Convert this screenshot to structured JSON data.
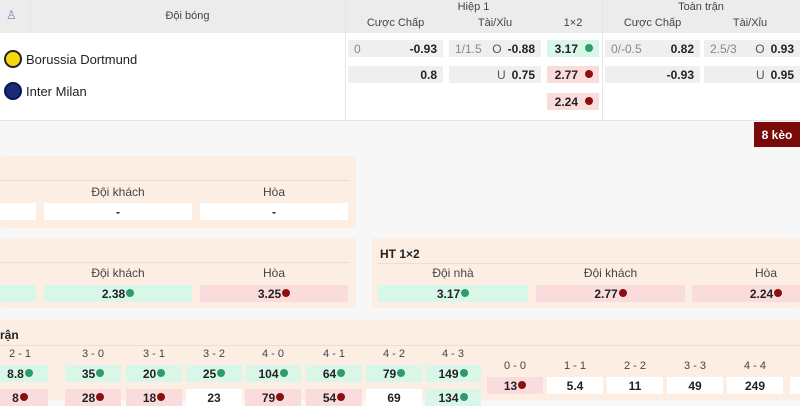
{
  "header": {
    "team_col": "Đội bóng",
    "half1": "Hiệp 1",
    "full": "Toàn trận",
    "handicap": "Cược Chấp",
    "ou": "Tài/Xỉu",
    "x12": "1×2"
  },
  "teams": [
    {
      "name": "Borussia Dortmund",
      "logo": "bvb-logo"
    },
    {
      "name": "Inter Milan",
      "logo": "inter-logo"
    }
  ],
  "odds": {
    "h1_hdp": [
      {
        "line": "0",
        "odds": "-0.93"
      },
      {
        "line": "",
        "odds": "0.8"
      }
    ],
    "h1_ou": [
      {
        "line": "1/1.5",
        "side": "O",
        "odds": "-0.88"
      },
      {
        "line": "",
        "side": "U",
        "odds": "0.75"
      }
    ],
    "h1_1x2": [
      {
        "odds": "3.17",
        "trend": "up"
      },
      {
        "odds": "2.77",
        "trend": "down"
      },
      {
        "odds": "2.24",
        "trend": "down"
      }
    ],
    "ft_hdp": [
      {
        "line": "0/-0.5",
        "odds": "0.82"
      },
      {
        "line": "",
        "odds": "-0.93"
      }
    ],
    "ft_ou": [
      {
        "line": "2.5/3",
        "side": "O",
        "odds": "0.93"
      },
      {
        "line": "",
        "side": "U",
        "odds": "0.95"
      }
    ]
  },
  "more_button": "8 kèo",
  "panel1": {
    "labels": [
      "Đội khách",
      "Hòa"
    ],
    "values": [
      "-",
      "-"
    ]
  },
  "panel2": {
    "labels": [
      "Đội khách",
      "Hòa"
    ],
    "values": [
      "2.38",
      "3.25"
    ]
  },
  "ht1x2": {
    "title": "HT 1×2",
    "labels": [
      "Đội nhà",
      "Đội khách",
      "Hòa"
    ],
    "values": [
      "3.17",
      "2.77",
      "2.24"
    ]
  },
  "correct_score": {
    "title": "rận",
    "scores": [
      "2 - 1",
      "3 - 0",
      "3 - 1",
      "3 - 2",
      "4 - 0",
      "4 - 1",
      "4 - 2",
      "4 - 3"
    ],
    "home": [
      "8.8",
      "35",
      "20",
      "25",
      "104",
      "64",
      "79",
      "149"
    ],
    "away": [
      "8",
      "28",
      "18",
      "23",
      "79",
      "54",
      "69",
      "134"
    ],
    "away_trend": [
      "down",
      "down",
      "down",
      "none",
      "down",
      "down",
      "none",
      "up"
    ],
    "draws": [
      "0 - 0",
      "1 - 1",
      "2 - 2",
      "3 - 3",
      "4 - 4"
    ],
    "draw_values": [
      "13",
      "5.4",
      "11",
      "49",
      "249"
    ]
  },
  "colors": {
    "accent": "#7a0a0a",
    "up": "#2e9b6a",
    "down": "#8a1010",
    "panel": "#fdeee3"
  }
}
